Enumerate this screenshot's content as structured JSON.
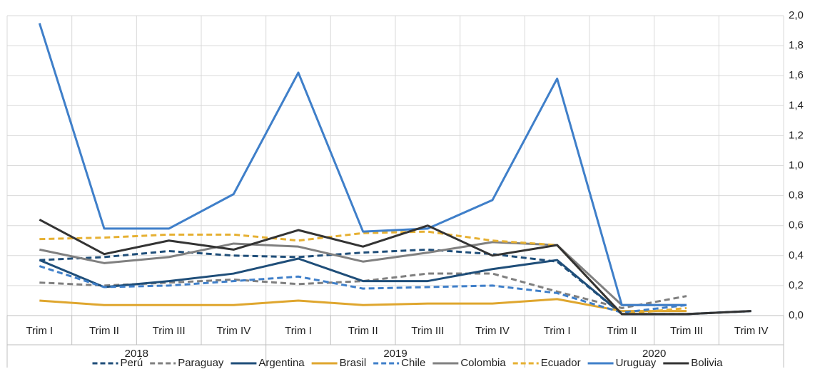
{
  "chart_data": {
    "type": "line",
    "categories": [
      "Trim I",
      "Trim II",
      "Trim III",
      "Trim IV",
      "Trim I",
      "Trim II",
      "Trim III",
      "Trim IV",
      "Trim I",
      "Trim II",
      "Trim III",
      "Trim IV"
    ],
    "groups": [
      "2018",
      "2019",
      "2020"
    ],
    "ylim": [
      0,
      2
    ],
    "yticks": [
      {
        "value": 0,
        "label": "0,0"
      },
      {
        "value": 0.2,
        "label": "0,2"
      },
      {
        "value": 0.4,
        "label": "0,4"
      },
      {
        "value": 0.6,
        "label": "0,6"
      },
      {
        "value": 0.8,
        "label": "0,8"
      },
      {
        "value": 1,
        "label": "1,0"
      },
      {
        "value": 1.2,
        "label": "1,2"
      },
      {
        "value": 1.4,
        "label": "1,4"
      },
      {
        "value": 1.6,
        "label": "1,6"
      },
      {
        "value": 1.8,
        "label": "1,8"
      },
      {
        "value": 2,
        "label": "2,0"
      }
    ],
    "y_axis_side": "right",
    "grid": true,
    "legend": "bottom",
    "series": [
      {
        "name": "Perú",
        "color": "#1f4e79",
        "dash": true,
        "values": [
          0.37,
          0.39,
          0.43,
          0.4,
          0.39,
          0.42,
          0.44,
          0.41,
          0.36,
          0.01,
          0.01,
          0.03
        ]
      },
      {
        "name": "Paraguay",
        "color": "#7f7f7f",
        "dash": true,
        "values": [
          0.22,
          0.2,
          0.22,
          0.24,
          0.21,
          0.23,
          0.28,
          0.28,
          0.16,
          0.05,
          0.13,
          null
        ]
      },
      {
        "name": "Argentina",
        "color": "#1f4e79",
        "dash": false,
        "values": [
          0.37,
          0.19,
          0.23,
          0.28,
          0.38,
          0.23,
          0.23,
          0.31,
          0.37,
          0.01,
          0.01,
          0.03
        ]
      },
      {
        "name": "Brasil",
        "color": "#dfa62e",
        "dash": false,
        "values": [
          0.1,
          0.07,
          0.07,
          0.07,
          0.1,
          0.07,
          0.08,
          0.08,
          0.11,
          0.03,
          0.03,
          null
        ]
      },
      {
        "name": "Chile",
        "color": "#3f7fc9",
        "dash": true,
        "values": [
          0.33,
          0.19,
          0.2,
          0.23,
          0.26,
          0.18,
          0.19,
          0.2,
          0.15,
          0.02,
          0.07,
          null
        ]
      },
      {
        "name": "Colombia",
        "color": "#808080",
        "dash": false,
        "values": [
          0.44,
          0.35,
          0.39,
          0.48,
          0.46,
          0.36,
          0.42,
          0.49,
          0.47,
          0.07,
          0.07,
          null
        ]
      },
      {
        "name": "Ecuador",
        "color": "#e6b032",
        "dash": true,
        "values": [
          0.51,
          0.52,
          0.54,
          0.54,
          0.5,
          0.55,
          0.56,
          0.5,
          0.47,
          0.01,
          0.05,
          null
        ]
      },
      {
        "name": "Uruguay",
        "color": "#3f7fc9",
        "dash": false,
        "values": [
          1.95,
          0.58,
          0.58,
          0.81,
          1.62,
          0.56,
          0.58,
          0.77,
          1.58,
          0.07,
          0.07,
          null
        ]
      },
      {
        "name": "Bolivia",
        "color": "#333333",
        "dash": false,
        "values": [
          0.64,
          0.41,
          0.5,
          0.44,
          0.57,
          0.46,
          0.6,
          0.4,
          0.47,
          0.01,
          0.01,
          0.03
        ]
      }
    ]
  }
}
